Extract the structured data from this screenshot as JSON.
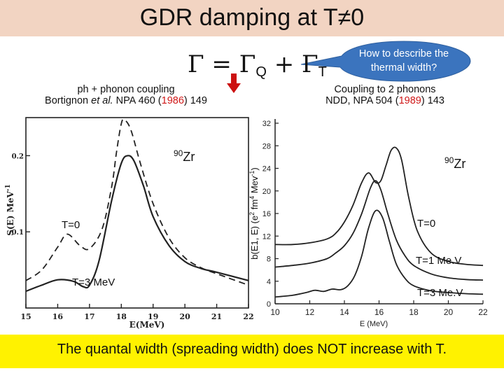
{
  "slide": {
    "title": "GDR damping at T≠0",
    "formula": {
      "lhs": "Γ",
      "eq": "=",
      "gq": "Γ",
      "q_sub": "Q",
      "plus": "+",
      "gt": "Γ",
      "t_sub": "T"
    },
    "bubble_line1": "How to describe the",
    "bubble_line2": "thermal width?",
    "left_caption_line1": "ph + phonon coupling",
    "left_caption_pre": "Bortignon ",
    "left_caption_etal": "et al.",
    "left_caption_mid": " NPA 460 (",
    "left_caption_year": "1986",
    "left_caption_post": ") 149",
    "right_caption_line1": "Coupling to 2 phonons",
    "right_caption_pre": "NDD, NPA 504 (",
    "right_caption_year": "1989",
    "right_caption_post": ") 143",
    "bottom_text": "The quantal width (spreading width) does NOT increase with T.",
    "colors": {
      "title_bar": "#f2d4c2",
      "bubble": "#3b74be",
      "year": "#d01818",
      "bottom_bar": "#fff200"
    }
  },
  "chart_data": [
    {
      "type": "line",
      "ylabel_left": "S(E) MeV",
      "ylabel_exp": "-1",
      "xlabel": "E(MeV)",
      "xlim": [
        15,
        22
      ],
      "ylim": [
        0,
        0.25
      ],
      "xticks": [
        "15",
        "16",
        "17",
        "18",
        "19",
        "20",
        "21",
        "22"
      ],
      "yticks": [
        {
          "value": 0.2,
          "label": "0.2"
        },
        {
          "value": 0.1,
          "label": "0.1"
        }
      ],
      "nucleus_mass": "90",
      "nucleus_symbol": "Zr",
      "series": [
        {
          "name": "T=0",
          "style": "dashed",
          "x": [
            15,
            15.5,
            16,
            16.3,
            16.7,
            17,
            17.4,
            17.7,
            17.85,
            18.0,
            18.1,
            18.3,
            18.6,
            19,
            19.5,
            20,
            20.5,
            21,
            22
          ],
          "y": [
            0.036,
            0.05,
            0.08,
            0.097,
            0.082,
            0.078,
            0.104,
            0.16,
            0.205,
            0.242,
            0.247,
            0.234,
            0.19,
            0.137,
            0.092,
            0.066,
            0.053,
            0.045,
            0.03
          ]
        },
        {
          "name": "T=3 MeV",
          "style": "solid",
          "x": [
            15,
            15.5,
            16,
            16.5,
            16.8,
            17,
            17.3,
            17.7,
            18.0,
            18.2,
            18.4,
            18.7,
            19,
            19.5,
            20,
            20.5,
            21,
            22
          ],
          "y": [
            0.022,
            0.03,
            0.037,
            0.035,
            0.028,
            0.03,
            0.062,
            0.142,
            0.19,
            0.2,
            0.193,
            0.16,
            0.12,
            0.082,
            0.061,
            0.052,
            0.047,
            0.036
          ]
        }
      ],
      "annotations": {
        "t0": "T=0",
        "t3": "T=3 MeV"
      }
    },
    {
      "type": "line",
      "ylabel": "b(E1, E) (e",
      "ylabel_sup1": "2",
      "ylabel_mid": " fm",
      "ylabel_sup2": "4",
      "ylabel_end": " Mev",
      "ylabel_sup3": "-1",
      "ylabel_close": ")",
      "xlabel": "E (MeV)",
      "xlim": [
        10,
        22
      ],
      "ylim": [
        0,
        32
      ],
      "xticks": [
        "10",
        "12",
        "14",
        "16",
        "18",
        "20",
        "22"
      ],
      "yticks": [
        "0",
        "4",
        "8",
        "12",
        "16",
        "20",
        "24",
        "28",
        "32"
      ],
      "nucleus_mass": "90",
      "nucleus_symbol": "Zr",
      "series": [
        {
          "name": "T=0",
          "x": [
            10,
            11,
            12,
            13,
            13.5,
            14,
            14.5,
            15,
            15.4,
            15.8,
            16.1,
            16.4,
            16.7,
            17.0,
            17.3,
            17.7,
            18.2,
            19,
            20,
            21,
            22
          ],
          "y": [
            10.5,
            10.5,
            10.8,
            11.5,
            12.5,
            14.5,
            17.5,
            21.5,
            23.2,
            21.5,
            21.8,
            24.5,
            27.2,
            27.6,
            25.5,
            19,
            13,
            9,
            7.5,
            7,
            6.8
          ]
        },
        {
          "name": "T=1 MeV",
          "x": [
            10,
            11,
            12,
            13,
            13.5,
            14,
            14.5,
            15,
            15.5,
            15.8,
            16.1,
            16.5,
            17,
            17.5,
            18,
            19,
            20,
            21,
            22
          ],
          "y": [
            6.5,
            6.8,
            7.2,
            8,
            9,
            10.3,
            12.5,
            16,
            20.5,
            21.8,
            20.2,
            16,
            11.3,
            8.5,
            6.8,
            5.3,
            4.6,
            4.3,
            4.2
          ]
        },
        {
          "name": "T=3 MeV",
          "x": [
            10,
            11,
            11.8,
            12.3,
            12.8,
            13.3,
            13.8,
            14.2,
            14.6,
            15,
            15.4,
            15.8,
            16.2,
            16.6,
            17,
            17.5,
            18,
            19,
            20,
            21,
            22
          ],
          "y": [
            1.2,
            1.5,
            2,
            2.4,
            2.2,
            2.6,
            2.5,
            3.2,
            5,
            8.5,
            13.5,
            16.5,
            15.3,
            11,
            7,
            4.5,
            3.2,
            2.3,
            2,
            1.8,
            1.7
          ]
        }
      ],
      "annotations": {
        "t0": "T=0",
        "t1": "T=1 Me.V",
        "t3": "T=3 Me.V"
      }
    }
  ]
}
